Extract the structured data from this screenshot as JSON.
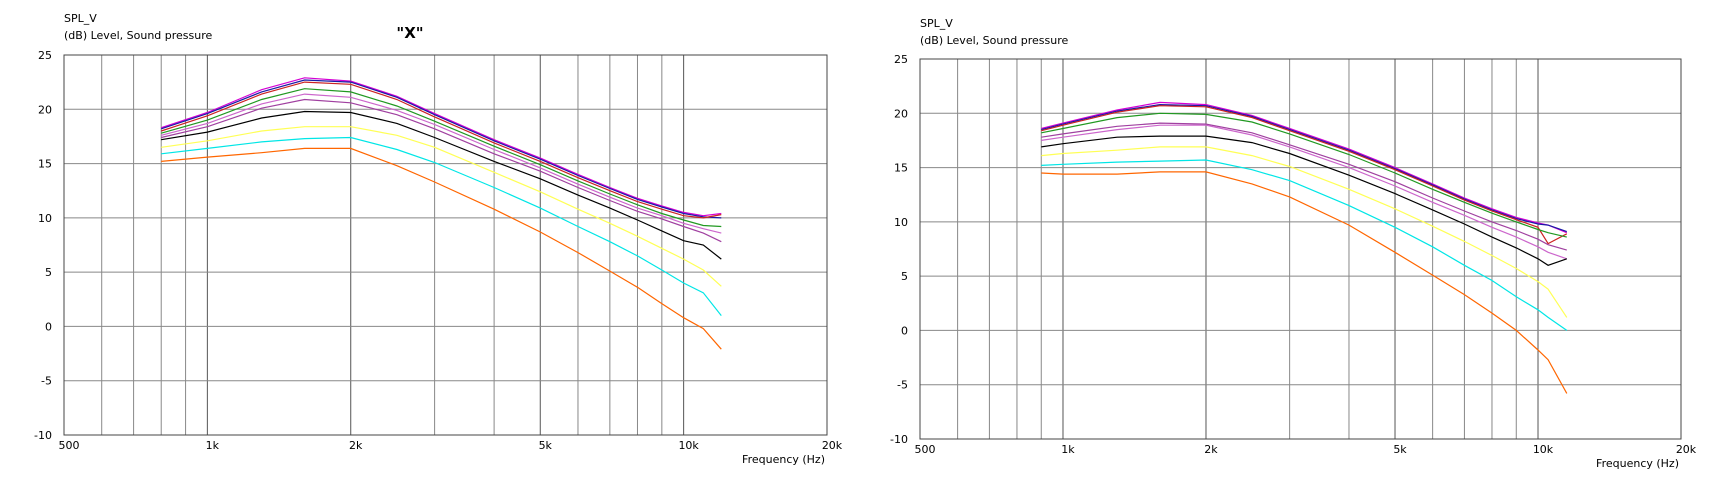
{
  "charts": [
    {
      "header_line1": "SPL_V",
      "header_line2": "(dB)  Level, Sound pressure",
      "title": "\"X\"",
      "xlabel": "Frequency  (Hz)"
    },
    {
      "header_line1": "SPL_V",
      "header_line2": "(dB)  Level, Sound pressure",
      "title": "",
      "xlabel": "Frequency  (Hz)"
    }
  ],
  "series_colors": [
    "#d400d4",
    "#1a1aa6",
    "#cc2222",
    "#229922",
    "#a040a0",
    "#cc66cc",
    "#000000",
    "#ffff55",
    "#00e6e6",
    "#ff6600"
  ],
  "chart_data": [
    {
      "type": "line",
      "xscale": "log",
      "xlim": [
        500,
        20000
      ],
      "ylim": [
        -10,
        25
      ],
      "grid": true,
      "title": "\"X\"",
      "ylabel": "SPL_V (dB) Level, Sound pressure",
      "xlabel": "Frequency (Hz)",
      "x_ticks": [
        "500",
        "1k",
        "2k",
        "5k",
        "10k",
        "20k"
      ],
      "y_ticks": [
        "25",
        "20",
        "15",
        "10",
        "5",
        "0",
        "-5",
        "-10"
      ],
      "series": [
        {
          "x": [
            800,
            1000,
            1300,
            1600,
            2000,
            2500,
            3000,
            4000,
            5000,
            6000,
            7000,
            8000,
            9000,
            10000,
            11000,
            12000
          ],
          "y": [
            18.3,
            19.7,
            21.8,
            22.9,
            22.6,
            21.2,
            19.6,
            17.2,
            15.5,
            14.0,
            12.8,
            11.8,
            11.1,
            10.5,
            10.2,
            10.4
          ]
        },
        {
          "x": [
            800,
            1000,
            1300,
            1600,
            2000,
            2500,
            3000,
            4000,
            5000,
            6000,
            7000,
            8000,
            9000,
            10000,
            11000,
            12000
          ],
          "y": [
            18.2,
            19.6,
            21.6,
            22.7,
            22.5,
            21.1,
            19.5,
            17.1,
            15.4,
            13.9,
            12.7,
            11.7,
            11.0,
            10.4,
            10.1,
            10.0
          ]
        },
        {
          "x": [
            800,
            1000,
            1300,
            1600,
            2000,
            2500,
            3000,
            4000,
            5000,
            6000,
            7000,
            8000,
            9000,
            10000,
            11000,
            12000
          ],
          "y": [
            18.0,
            19.4,
            21.4,
            22.5,
            22.3,
            20.9,
            19.3,
            16.9,
            15.2,
            13.7,
            12.5,
            11.5,
            10.8,
            10.2,
            10.0,
            10.3
          ]
        },
        {
          "x": [
            800,
            1000,
            1300,
            1600,
            2000,
            2500,
            3000,
            4000,
            5000,
            6000,
            7000,
            8000,
            9000,
            10000,
            11000,
            12000
          ],
          "y": [
            17.8,
            19.0,
            20.9,
            21.9,
            21.6,
            20.3,
            18.9,
            16.6,
            14.9,
            13.4,
            12.2,
            11.2,
            10.4,
            9.8,
            9.3,
            9.2
          ]
        },
        {
          "x": [
            800,
            1000,
            1300,
            1600,
            2000,
            2500,
            3000,
            4000,
            5000,
            6000,
            7000,
            8000,
            9000,
            10000,
            11000,
            12000
          ],
          "y": [
            17.4,
            18.4,
            20.1,
            20.9,
            20.6,
            19.5,
            18.2,
            15.9,
            14.3,
            12.8,
            11.6,
            10.6,
            9.9,
            9.2,
            8.6,
            7.8
          ]
        },
        {
          "x": [
            800,
            1000,
            1300,
            1600,
            2000,
            2500,
            3000,
            4000,
            5000,
            6000,
            7000,
            8000,
            9000,
            10000,
            11000,
            12000
          ],
          "y": [
            17.6,
            18.7,
            20.5,
            21.4,
            21.1,
            19.9,
            18.6,
            16.3,
            14.6,
            13.1,
            11.9,
            10.9,
            10.2,
            9.5,
            9.0,
            8.6
          ]
        },
        {
          "x": [
            800,
            1000,
            1300,
            1600,
            2000,
            2500,
            3000,
            4000,
            5000,
            6000,
            7000,
            8000,
            9000,
            10000,
            11000,
            12000
          ],
          "y": [
            17.2,
            17.9,
            19.2,
            19.8,
            19.7,
            18.7,
            17.4,
            15.2,
            13.6,
            12.1,
            10.9,
            9.8,
            8.8,
            7.9,
            7.5,
            6.2
          ]
        },
        {
          "x": [
            800,
            1000,
            1300,
            1600,
            2000,
            2500,
            3000,
            4000,
            5000,
            6000,
            7000,
            8000,
            9000,
            10000,
            11000,
            12000
          ],
          "y": [
            16.5,
            17.1,
            18.0,
            18.4,
            18.4,
            17.6,
            16.5,
            14.2,
            12.4,
            10.8,
            9.5,
            8.3,
            7.2,
            6.2,
            5.2,
            3.7
          ]
        },
        {
          "x": [
            800,
            1000,
            1300,
            1600,
            2000,
            2500,
            3000,
            4000,
            5000,
            6000,
            7000,
            8000,
            9000,
            10000,
            11000,
            12000
          ],
          "y": [
            15.9,
            16.4,
            17.0,
            17.3,
            17.4,
            16.3,
            15.1,
            12.8,
            10.9,
            9.2,
            7.8,
            6.5,
            5.2,
            4.0,
            3.1,
            1.0
          ]
        },
        {
          "x": [
            800,
            1000,
            1300,
            1600,
            2000,
            2500,
            3000,
            4000,
            5000,
            6000,
            7000,
            8000,
            9000,
            10000,
            11000,
            12000
          ],
          "y": [
            15.2,
            15.6,
            16.0,
            16.4,
            16.4,
            14.8,
            13.3,
            10.8,
            8.7,
            6.8,
            5.1,
            3.6,
            2.1,
            0.8,
            -0.2,
            -2.1
          ]
        }
      ]
    },
    {
      "type": "line",
      "xscale": "log",
      "xlim": [
        500,
        20000
      ],
      "ylim": [
        -10,
        25
      ],
      "grid": true,
      "ylabel": "SPL_V (dB) Level, Sound pressure",
      "xlabel": "Frequency (Hz)",
      "x_ticks": [
        "500",
        "1k",
        "2k",
        "5k",
        "10k",
        "20k"
      ],
      "y_ticks": [
        "25",
        "20",
        "15",
        "10",
        "5",
        "0",
        "-5",
        "-10"
      ],
      "series": [
        {
          "x": [
            900,
            1000,
            1300,
            1600,
            2000,
            2500,
            3000,
            4000,
            5000,
            6000,
            7000,
            8000,
            9000,
            10000,
            10500,
            11500
          ],
          "y": [
            18.6,
            19.1,
            20.3,
            21.0,
            20.8,
            19.8,
            18.6,
            16.7,
            15.0,
            13.5,
            12.2,
            11.2,
            10.4,
            9.9,
            9.7,
            9.0
          ]
        },
        {
          "x": [
            900,
            1000,
            1300,
            1600,
            2000,
            2500,
            3000,
            4000,
            5000,
            6000,
            7000,
            8000,
            9000,
            10000,
            10500,
            11500
          ],
          "y": [
            18.5,
            19.0,
            20.2,
            20.8,
            20.7,
            19.7,
            18.5,
            16.6,
            14.9,
            13.4,
            12.1,
            11.1,
            10.3,
            9.8,
            9.7,
            9.1
          ]
        },
        {
          "x": [
            900,
            1000,
            1300,
            1600,
            2000,
            2500,
            3000,
            4000,
            5000,
            6000,
            7000,
            8000,
            9000,
            10000,
            10500,
            11500
          ],
          "y": [
            18.4,
            18.9,
            20.1,
            20.7,
            20.6,
            19.6,
            18.4,
            16.5,
            14.8,
            13.3,
            12.0,
            11.0,
            10.2,
            9.5,
            8.0,
            8.9
          ]
        },
        {
          "x": [
            900,
            1000,
            1300,
            1600,
            2000,
            2500,
            3000,
            4000,
            5000,
            6000,
            7000,
            8000,
            9000,
            10000,
            10500,
            11500
          ],
          "y": [
            18.2,
            18.6,
            19.6,
            20.0,
            19.9,
            19.2,
            18.1,
            16.2,
            14.5,
            13.0,
            11.8,
            10.8,
            10.0,
            9.3,
            9.0,
            8.6
          ]
        },
        {
          "x": [
            900,
            1000,
            1300,
            1600,
            2000,
            2500,
            3000,
            4000,
            5000,
            6000,
            7000,
            8000,
            9000,
            10000,
            10500,
            11500
          ],
          "y": [
            17.8,
            18.1,
            18.8,
            19.1,
            19.0,
            18.2,
            17.1,
            15.3,
            13.7,
            12.2,
            11.0,
            10.0,
            9.2,
            8.4,
            7.9,
            7.4
          ]
        },
        {
          "x": [
            900,
            1000,
            1300,
            1600,
            2000,
            2500,
            3000,
            4000,
            5000,
            6000,
            7000,
            8000,
            9000,
            10000,
            10500,
            11500
          ],
          "y": [
            17.5,
            17.8,
            18.5,
            18.9,
            18.9,
            18.0,
            16.9,
            15.0,
            13.3,
            11.8,
            10.6,
            9.5,
            8.6,
            7.7,
            7.2,
            6.6
          ]
        },
        {
          "x": [
            900,
            1000,
            1300,
            1600,
            2000,
            2500,
            3000,
            4000,
            5000,
            6000,
            7000,
            8000,
            9000,
            10000,
            10500,
            11500
          ],
          "y": [
            16.9,
            17.2,
            17.8,
            17.9,
            17.9,
            17.3,
            16.3,
            14.3,
            12.6,
            11.1,
            9.8,
            8.6,
            7.6,
            6.6,
            6.0,
            6.6
          ]
        },
        {
          "x": [
            900,
            1000,
            1300,
            1600,
            2000,
            2500,
            3000,
            4000,
            5000,
            6000,
            7000,
            8000,
            9000,
            10000,
            10500,
            11500
          ],
          "y": [
            16.1,
            16.3,
            16.6,
            16.9,
            16.9,
            16.1,
            15.1,
            13.0,
            11.2,
            9.6,
            8.2,
            6.9,
            5.7,
            4.5,
            3.8,
            1.2
          ]
        },
        {
          "x": [
            900,
            1000,
            1300,
            1600,
            2000,
            2500,
            3000,
            4000,
            5000,
            6000,
            7000,
            8000,
            9000,
            10000,
            10500,
            11500
          ],
          "y": [
            15.2,
            15.3,
            15.5,
            15.6,
            15.7,
            14.8,
            13.8,
            11.5,
            9.5,
            7.7,
            6.0,
            4.6,
            3.1,
            1.9,
            1.2,
            0.0
          ]
        },
        {
          "x": [
            900,
            1000,
            1300,
            1600,
            2000,
            2500,
            3000,
            4000,
            5000,
            6000,
            7000,
            8000,
            9000,
            10000,
            10500,
            11500
          ],
          "y": [
            14.5,
            14.4,
            14.4,
            14.6,
            14.6,
            13.5,
            12.3,
            9.7,
            7.2,
            5.1,
            3.3,
            1.6,
            0.0,
            -1.8,
            -2.7,
            -5.8
          ]
        }
      ]
    }
  ]
}
